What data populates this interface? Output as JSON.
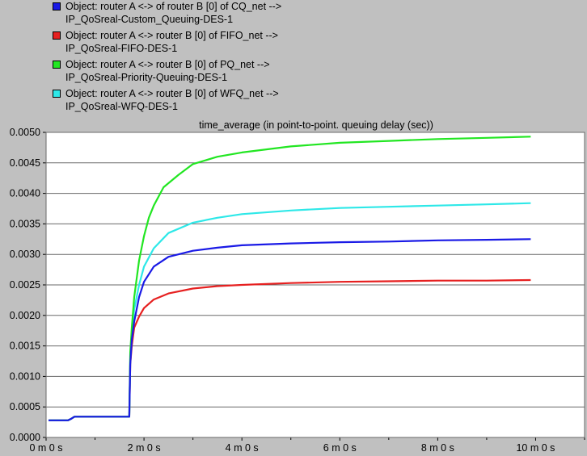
{
  "legend": [
    {
      "line1": "Object: router A <-> of router B [0] of CQ_net -->",
      "line2": "IP_QoSreal-Custom_Queuing-DES-1",
      "color": "#1a1ae6"
    },
    {
      "line1": "Object: router A <-> router B [0] of FIFO_net -->",
      "line2": "IP_QoSreal-FIFO-DES-1",
      "color": "#e62020"
    },
    {
      "line1": "Object: router A <-> router B [0] of PQ_net -->",
      "line2": "IP_QoSreal-Priority-Queuing-DES-1",
      "color": "#22e622"
    },
    {
      "line1": "Object: router A <-> router B [0] of WFQ_net -->",
      "line2": "IP_QoSreal-WFQ-DES-1",
      "color": "#2ee8e8"
    }
  ],
  "chart_data": {
    "type": "line",
    "title": "time_average (in point-to-point. queuing delay (sec))",
    "xlabel": "",
    "ylabel": "",
    "xlim": [
      0,
      11
    ],
    "ylim": [
      0,
      0.005
    ],
    "grid": "horizontal",
    "legend_placement": "top",
    "x_unit": "minutes",
    "x_ticks": [
      0,
      2,
      4,
      6,
      8,
      10
    ],
    "x_tick_labels": [
      "0 m 0 s",
      "2 m 0 s",
      "4 m 0 s",
      "6 m 0 s",
      "8 m 0 s",
      "10 m 0 s"
    ],
    "y_ticks": [
      0,
      0.0005,
      0.001,
      0.0015,
      0.002,
      0.0025,
      0.003,
      0.0035,
      0.004,
      0.0045,
      0.005
    ],
    "y_tick_labels": [
      "0.0000",
      "0.0005",
      "0.0010",
      "0.0015",
      "0.0020",
      "0.0025",
      "0.0030",
      "0.0035",
      "0.0040",
      "0.0045",
      "0.0050"
    ],
    "series": [
      {
        "name": "Object: router A <-> router B [0] of FIFO_net --> IP_QoSreal-FIFO-DES-1",
        "color": "#e62020",
        "x": [
          0.05,
          0.45,
          0.5,
          0.58,
          1.7,
          1.72,
          1.75,
          1.8,
          1.9,
          2.0,
          2.2,
          2.5,
          3.0,
          3.5,
          4.0,
          5.0,
          6.0,
          7.0,
          8.0,
          9.0,
          9.9
        ],
        "y": [
          0.00028,
          0.00028,
          0.0003,
          0.00034,
          0.00034,
          0.0012,
          0.0015,
          0.0018,
          0.00198,
          0.00212,
          0.00226,
          0.00236,
          0.00244,
          0.00248,
          0.0025,
          0.00253,
          0.00255,
          0.00256,
          0.00257,
          0.00257,
          0.00258
        ]
      },
      {
        "name": "Object: router A <-> router B [0] of WFQ_net --> IP_QoSreal-WFQ-DES-1",
        "color": "#2ee8e8",
        "x": [
          0.05,
          0.45,
          0.5,
          0.58,
          1.7,
          1.72,
          1.75,
          1.8,
          1.9,
          2.0,
          2.2,
          2.5,
          3.0,
          3.5,
          4.0,
          5.0,
          6.0,
          7.0,
          8.0,
          9.0,
          9.9
        ],
        "y": [
          0.00028,
          0.00028,
          0.0003,
          0.00034,
          0.00034,
          0.0013,
          0.0017,
          0.0021,
          0.0025,
          0.0028,
          0.0031,
          0.00335,
          0.00352,
          0.0036,
          0.00366,
          0.00372,
          0.00376,
          0.00378,
          0.0038,
          0.00382,
          0.00384
        ]
      },
      {
        "name": "Object: router A <-> router B [0] of PQ_net --> IP_QoSreal-Priority-Queuing-DES-1",
        "color": "#22e622",
        "x": [
          0.05,
          0.45,
          0.5,
          0.58,
          1.7,
          1.72,
          1.75,
          1.8,
          1.9,
          2.0,
          2.1,
          2.2,
          2.4,
          2.7,
          3.0,
          3.5,
          4.0,
          5.0,
          6.0,
          7.0,
          8.0,
          9.0,
          9.9
        ],
        "y": [
          0.00028,
          0.00028,
          0.0003,
          0.00034,
          0.00034,
          0.0014,
          0.0018,
          0.0023,
          0.0029,
          0.0033,
          0.0036,
          0.0038,
          0.0041,
          0.0043,
          0.00448,
          0.0046,
          0.00467,
          0.00477,
          0.00483,
          0.00486,
          0.00489,
          0.00491,
          0.00493
        ]
      },
      {
        "name": "Object: router A <-> of router B [0] of CQ_net --> IP_QoSreal-Custom_Queuing-DES-1",
        "color": "#1a1ae6",
        "x": [
          0.05,
          0.45,
          0.5,
          0.58,
          1.7,
          1.72,
          1.75,
          1.8,
          1.9,
          2.0,
          2.2,
          2.5,
          3.0,
          3.5,
          4.0,
          5.0,
          6.0,
          7.0,
          8.0,
          9.0,
          9.9
        ],
        "y": [
          0.00028,
          0.00028,
          0.0003,
          0.00034,
          0.00034,
          0.0012,
          0.0016,
          0.0019,
          0.0023,
          0.00255,
          0.0028,
          0.00296,
          0.00306,
          0.00311,
          0.00315,
          0.00318,
          0.0032,
          0.00321,
          0.00323,
          0.00324,
          0.00325
        ]
      }
    ]
  }
}
